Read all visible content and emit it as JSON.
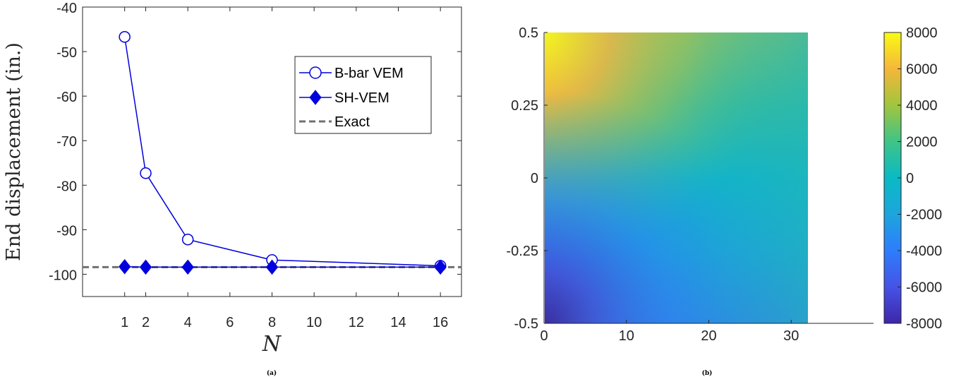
{
  "chart_data": [
    {
      "type": "line",
      "caption": "(a)",
      "xlabel": "N",
      "ylabel": "End displacement (in.)",
      "xlim": [
        -1,
        17
      ],
      "ylim": [
        -105,
        -40
      ],
      "x_ticks": [
        "1",
        "2",
        "4",
        "6",
        "8",
        "10",
        "12",
        "14",
        "16"
      ],
      "y_ticks": [
        "-40",
        "-50",
        "-60",
        "-70",
        "-80",
        "-90",
        "-100"
      ],
      "grid": false,
      "legend_position": "top-right",
      "series": [
        {
          "name": "B-bar VEM",
          "color": "#0000dd",
          "marker": "circle",
          "x": [
            1,
            2,
            4,
            8,
            16
          ],
          "y": [
            -46.7,
            -77.3,
            -92.2,
            -96.8,
            -98.1
          ]
        },
        {
          "name": "SH-VEM",
          "color": "#0000dd",
          "marker": "diamond",
          "x": [
            1,
            2,
            4,
            8,
            16
          ],
          "y": [
            -98.3,
            -98.4,
            -98.4,
            -98.4,
            -98.4
          ]
        },
        {
          "name": "Exact",
          "color": "#707070",
          "style": "dashed",
          "x": [
            -1,
            17
          ],
          "y": [
            -98.4,
            -98.4
          ]
        }
      ]
    },
    {
      "type": "heatmap",
      "caption": "(b)",
      "xlim": [
        0,
        40
      ],
      "ylim": [
        -0.5,
        0.5
      ],
      "x_ticks": [
        "0",
        "10",
        "20",
        "30"
      ],
      "y_ticks": [
        "0.5",
        "0.25",
        "0",
        "-0.25",
        "-0.5"
      ],
      "data_x_extent": [
        0,
        32
      ],
      "data_y_extent": [
        -0.5,
        0.5
      ],
      "colormap": "parula",
      "colorbar_range": [
        -8000,
        8000
      ],
      "colorbar_ticks": [
        "8000",
        "6000",
        "4000",
        "2000",
        "0",
        "-2000",
        "-4000",
        "-6000",
        "-8000"
      ]
    }
  ]
}
